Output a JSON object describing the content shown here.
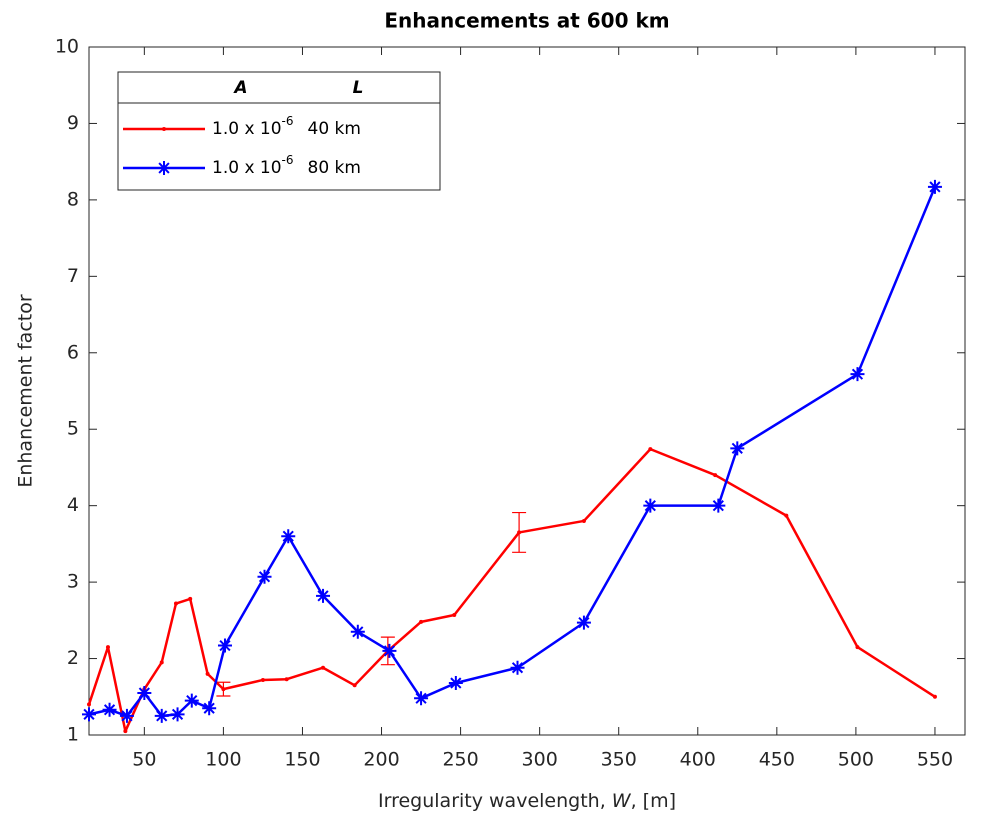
{
  "chart_data": {
    "type": "line",
    "title": "Enhancements at 600 km",
    "xlabel": {
      "before": "Irregularity wavelength, ",
      "symbol": "W",
      "after": ", [m]"
    },
    "ylabel": "Enhancement factor",
    "xlim": [
      15,
      569
    ],
    "ylim": [
      1,
      10
    ],
    "xticks": [
      50,
      100,
      150,
      200,
      250,
      300,
      350,
      400,
      450,
      500,
      550
    ],
    "yticks": [
      1,
      2,
      3,
      4,
      5,
      6,
      7,
      8,
      9,
      10
    ],
    "grid": false,
    "legend": {
      "position": "upper left",
      "headers": [
        "A",
        "L"
      ]
    },
    "series": [
      {
        "amplitude": "1.0 x 10",
        "exponent": "-6",
        "scale": "40 km",
        "color": "#ff0000",
        "marker": "dot",
        "x": [
          15,
          27,
          38,
          50,
          61,
          70,
          79,
          90,
          100,
          125,
          140,
          163,
          183,
          204,
          225,
          246,
          287,
          328,
          370,
          411,
          456,
          501,
          550
        ],
        "values": [
          1.4,
          2.15,
          1.05,
          1.6,
          1.95,
          2.72,
          2.78,
          1.8,
          1.6,
          1.72,
          1.73,
          1.88,
          1.65,
          2.1,
          2.48,
          2.57,
          3.65,
          3.8,
          4.74,
          4.4,
          3.87,
          2.15,
          1.5
        ],
        "errors": [
          null,
          null,
          null,
          null,
          null,
          null,
          null,
          null,
          0.09,
          null,
          null,
          null,
          null,
          0.18,
          null,
          null,
          0.26,
          null,
          null,
          null,
          null,
          null,
          null
        ]
      },
      {
        "amplitude": "1.0 x 10",
        "exponent": "-6",
        "scale": "80 km",
        "color": "#0000ff",
        "marker": "asterisk",
        "x": [
          15,
          28,
          39,
          50,
          61,
          71,
          80,
          91,
          101,
          126,
          141,
          163,
          185,
          205,
          225,
          247,
          286,
          328,
          370,
          413,
          425,
          501,
          550
        ],
        "values": [
          1.27,
          1.33,
          1.25,
          1.55,
          1.25,
          1.27,
          1.45,
          1.35,
          2.17,
          3.07,
          3.6,
          2.82,
          2.35,
          2.1,
          1.48,
          1.68,
          1.88,
          2.47,
          4.0,
          4.0,
          4.75,
          5.72,
          8.17
        ]
      }
    ]
  }
}
